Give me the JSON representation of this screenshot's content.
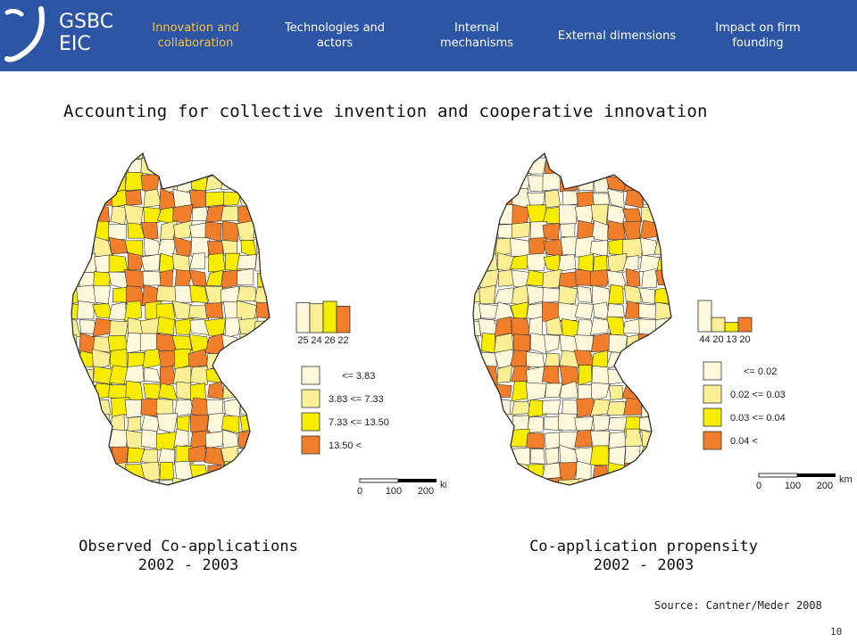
{
  "header": {
    "logo_line1": "GSBC",
    "logo_line2": "EIC",
    "nav": [
      {
        "label": "Innovation and collaboration",
        "active": true
      },
      {
        "label": "Technologies and actors",
        "active": false
      },
      {
        "label": "Internal mechanisms",
        "active": false
      },
      {
        "label": "External dimensions",
        "active": false
      },
      {
        "label": "Impact on firm founding",
        "active": false
      }
    ]
  },
  "title": "Accounting for collective invention and cooperative innovation",
  "colors": {
    "header_bg": "#2c55a6",
    "class1": "#fdf8dc",
    "class2": "#fbef96",
    "class3": "#f7eb00",
    "class4": "#f07e2a",
    "active_nav": "#f5c24a"
  },
  "maps": [
    {
      "caption_line1": "Observed Co-applications",
      "caption_line2": "2002 - 2003",
      "histogram": [
        {
          "label": "25",
          "count": 25
        },
        {
          "label": "24",
          "count": 24
        },
        {
          "label": "26",
          "count": 26
        },
        {
          "label": "22",
          "count": 22
        }
      ],
      "legend": [
        "<= 3.83",
        "3.83 <= 7.33",
        "7.33 <= 13.50",
        "13.50 <"
      ],
      "scale": {
        "ticks": [
          "0",
          "100",
          "200"
        ],
        "unit": "km"
      }
    },
    {
      "caption_line1": "Co-application propensity",
      "caption_line2": "2002 - 2003",
      "histogram": [
        {
          "label": "44",
          "count": 44
        },
        {
          "label": "20",
          "count": 20
        },
        {
          "label": "13",
          "count": 13
        },
        {
          "label": "20",
          "count": 20
        }
      ],
      "legend": [
        "<= 0.02",
        "0.02 <= 0.03",
        "0.03 <= 0.04",
        "0.04 <"
      ],
      "scale": {
        "ticks": [
          "0",
          "100",
          "200"
        ],
        "unit": "km"
      }
    }
  ],
  "source": "Source: Cantner/Meder 2008",
  "page_number": "10"
}
